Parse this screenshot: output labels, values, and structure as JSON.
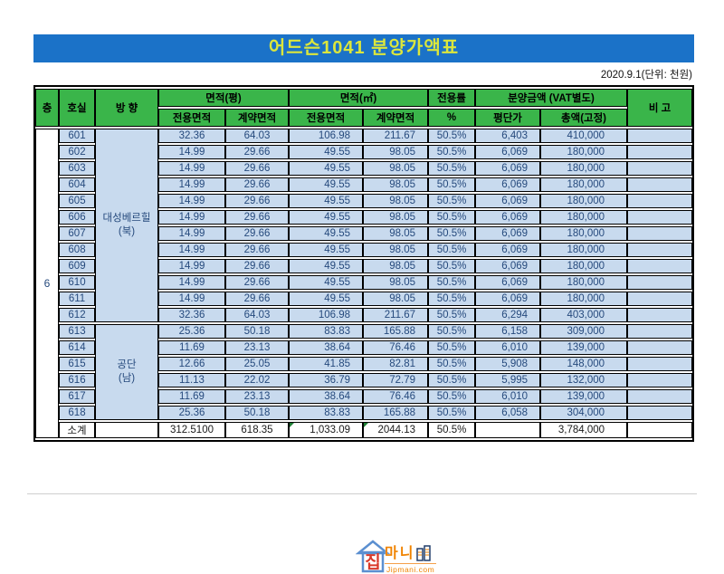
{
  "title": "어드슨1041 분양가액표",
  "meta": {
    "date_note": "2020.9.1(단위: 천원)"
  },
  "table": {
    "headers": {
      "floor": "층",
      "unit": "호실",
      "direction": "방 향",
      "area_pyeong": "면적(평)",
      "area_m2": "면적(㎡)",
      "exclusive_rate": "전용률",
      "price_group": "분양금액 (VAT별도)",
      "remarks": "비 고",
      "sub": {
        "exclusive_area": "전용면적",
        "contract_area": "계약면적",
        "percent": "%",
        "price_per_pyeong": "평단가",
        "total_fixed": "총액(고정)"
      }
    },
    "floor_label": "6",
    "groups": [
      {
        "direction": "대성베르힐\n(북)",
        "rows": [
          [
            "601",
            "32.36",
            "64.03",
            "106.98",
            "211.67",
            "50.5%",
            "6,403",
            "410,000"
          ],
          [
            "602",
            "14.99",
            "29.66",
            "49.55",
            "98.05",
            "50.5%",
            "6,069",
            "180,000"
          ],
          [
            "603",
            "14.99",
            "29.66",
            "49.55",
            "98.05",
            "50.5%",
            "6,069",
            "180,000"
          ],
          [
            "604",
            "14.99",
            "29.66",
            "49.55",
            "98.05",
            "50.5%",
            "6,069",
            "180,000"
          ],
          [
            "605",
            "14.99",
            "29.66",
            "49.55",
            "98.05",
            "50.5%",
            "6,069",
            "180,000"
          ],
          [
            "606",
            "14.99",
            "29.66",
            "49.55",
            "98.05",
            "50.5%",
            "6,069",
            "180,000"
          ],
          [
            "607",
            "14.99",
            "29.66",
            "49.55",
            "98.05",
            "50.5%",
            "6,069",
            "180,000"
          ],
          [
            "608",
            "14.99",
            "29.66",
            "49.55",
            "98.05",
            "50.5%",
            "6,069",
            "180,000"
          ],
          [
            "609",
            "14.99",
            "29.66",
            "49.55",
            "98.05",
            "50.5%",
            "6,069",
            "180,000"
          ],
          [
            "610",
            "14.99",
            "29.66",
            "49.55",
            "98.05",
            "50.5%",
            "6,069",
            "180,000"
          ],
          [
            "611",
            "14.99",
            "29.66",
            "49.55",
            "98.05",
            "50.5%",
            "6,069",
            "180,000"
          ],
          [
            "612",
            "32.36",
            "64.03",
            "106.98",
            "211.67",
            "50.5%",
            "6,294",
            "403,000"
          ]
        ]
      },
      {
        "direction": "공단\n(남)",
        "rows": [
          [
            "613",
            "25.36",
            "50.18",
            "83.83",
            "165.88",
            "50.5%",
            "6,158",
            "309,000"
          ],
          [
            "614",
            "11.69",
            "23.13",
            "38.64",
            "76.46",
            "50.5%",
            "6,010",
            "139,000"
          ],
          [
            "615",
            "12.66",
            "25.05",
            "41.85",
            "82.81",
            "50.5%",
            "5,908",
            "148,000"
          ],
          [
            "616",
            "11.13",
            "22.02",
            "36.79",
            "72.79",
            "50.5%",
            "5,995",
            "132,000"
          ],
          [
            "617",
            "11.69",
            "23.13",
            "38.64",
            "76.46",
            "50.5%",
            "6,010",
            "139,000"
          ],
          [
            "618",
            "25.36",
            "50.18",
            "83.83",
            "165.88",
            "50.5%",
            "6,058",
            "304,000"
          ]
        ]
      }
    ],
    "subtotal": {
      "label": "소계",
      "values": [
        "312.5100",
        "618.35",
        "1,033.09",
        "2044.13",
        "50.5%",
        "",
        "3,784,000"
      ],
      "error_indicator_cols": [
        2,
        3
      ]
    }
  },
  "logo": {
    "jip": "집",
    "mani": "마니",
    "domain": "Jipmani.com"
  },
  "colors": {
    "title_bg": "#1B72C8",
    "title_text": "#DCE63C",
    "header_bg": "#3AB54A",
    "cell_bg": "#C8DAEE",
    "cell_text": "#264A7D"
  }
}
